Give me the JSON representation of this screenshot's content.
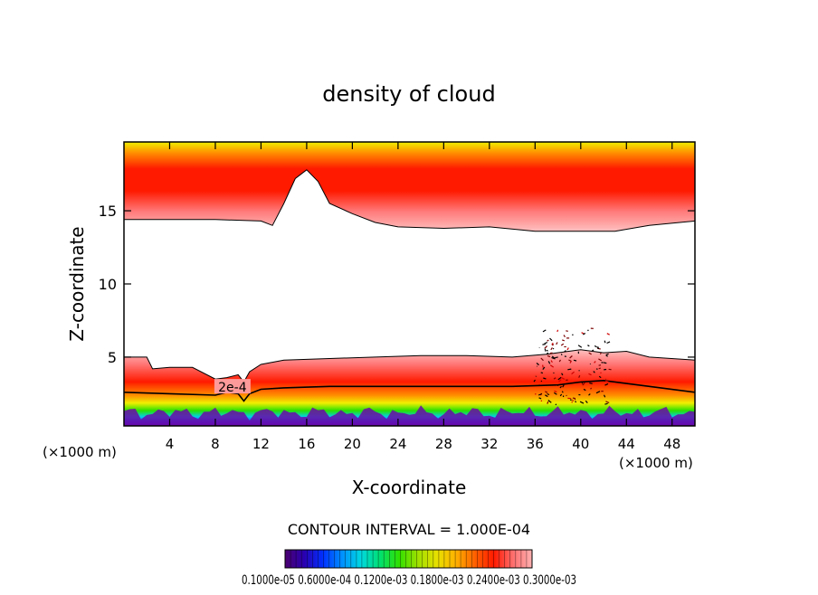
{
  "chart_data": {
    "type": "heatmap",
    "title": "density of cloud",
    "xlabel": "X-coordinate",
    "ylabel": "Z-coordinate",
    "x_unit_left": "(×1000 m)",
    "x_unit_right": "(×1000 m)",
    "xlim": [
      0,
      50
    ],
    "ylim": [
      0.3,
      19.7
    ],
    "xticks": [
      4,
      8,
      12,
      16,
      20,
      24,
      28,
      32,
      36,
      40,
      44,
      48
    ],
    "yticks": [
      5,
      10,
      15
    ],
    "contour_interval_text": "CONTOUR INTERVAL = 1.000E-04",
    "contour_label": "2e-4",
    "colorbar_label": "0.1000e-05  0.6000e-04  0.1200e-03  0.1800e-03  0.2400e-03  0.3000e-03",
    "colorbar_min_text": "0.1000e-05",
    "colorbar_max_text": "0.3000e-03",
    "upper_layer_bottom": {
      "x": [
        0,
        4,
        8,
        12,
        13,
        14,
        15,
        16,
        17,
        18,
        20,
        22,
        24,
        28,
        32,
        36,
        40,
        43,
        46,
        50
      ],
      "z": [
        14.4,
        14.4,
        14.4,
        14.3,
        14.0,
        15.5,
        17.2,
        17.8,
        17.0,
        15.5,
        14.8,
        14.2,
        13.9,
        13.8,
        13.9,
        13.6,
        13.6,
        13.6,
        14.0,
        14.3
      ]
    },
    "lower_layer_top": {
      "x": [
        0,
        2,
        2.5,
        4,
        6,
        8,
        9,
        10,
        10.5,
        11,
        12,
        14,
        18,
        22,
        26,
        30,
        34,
        37,
        40,
        42,
        44,
        46,
        50
      ],
      "z": [
        5.0,
        5.0,
        4.2,
        4.3,
        4.3,
        3.5,
        3.6,
        3.8,
        3.3,
        4.0,
        4.5,
        4.8,
        4.9,
        5.0,
        5.1,
        5.1,
        5.0,
        5.2,
        5.5,
        5.3,
        5.4,
        5.0,
        4.8
      ]
    },
    "contour_2e4": {
      "x": [
        0,
        4,
        8,
        9,
        10,
        10.5,
        11,
        12,
        14,
        18,
        22,
        28,
        34,
        38,
        40,
        42,
        46,
        50
      ],
      "z": [
        2.6,
        2.5,
        2.4,
        2.6,
        2.5,
        2.0,
        2.5,
        2.8,
        2.9,
        3.0,
        3.0,
        3.0,
        3.0,
        3.1,
        3.3,
        3.4,
        3.0,
        2.6
      ]
    },
    "colorbar_colors": [
      "#4b006e",
      "#2a00b0",
      "#0030ff",
      "#0090ff",
      "#00d8e0",
      "#00e070",
      "#30e000",
      "#a0e000",
      "#e8e000",
      "#ffb000",
      "#ff6000",
      "#ff1a00",
      "#ff6f6f",
      "#ffb0b0"
    ],
    "field_colors": {
      "deep": "#6a0aa8",
      "blue": "#1e3cff",
      "cyan": "#00d0e8",
      "green": "#28e000",
      "yellow": "#f0f000",
      "orange": "#ff9000",
      "red": "#ff1a00",
      "pink": "#ff7a7a",
      "lightpink": "#ffc0c0"
    }
  }
}
